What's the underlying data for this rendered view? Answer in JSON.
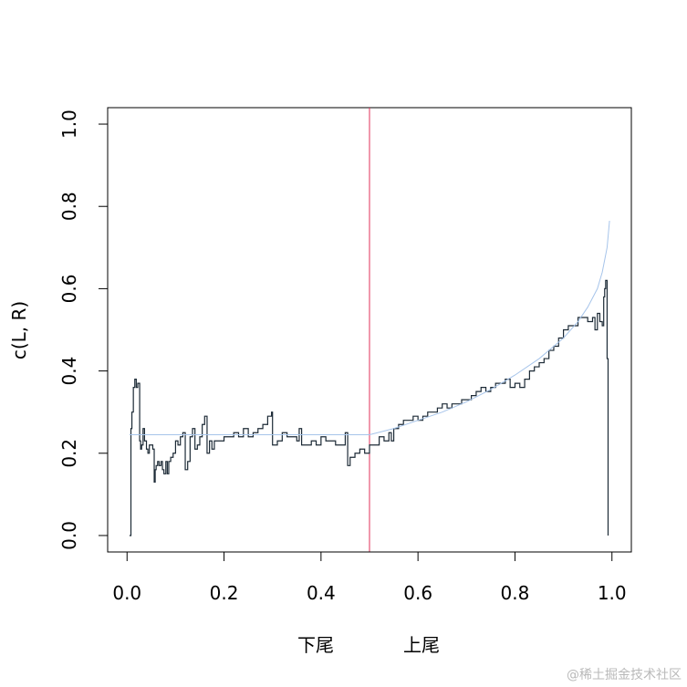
{
  "chart_data": {
    "type": "line",
    "title": "",
    "xlabel_parts": [
      "下尾",
      "上尾"
    ],
    "ylabel": "c(L, R)",
    "xlim": [
      -0.04,
      1.04
    ],
    "ylim": [
      -0.04,
      1.04
    ],
    "x_ticks": [
      0.0,
      0.2,
      0.4,
      0.6,
      0.8,
      1.0
    ],
    "x_tick_labels": [
      "0.0",
      "0.2",
      "0.4",
      "0.6",
      "0.8",
      "1.0"
    ],
    "y_ticks": [
      0.0,
      0.2,
      0.4,
      0.6,
      0.8,
      1.0
    ],
    "y_tick_labels": [
      "0.0",
      "0.2",
      "0.4",
      "0.6",
      "0.8",
      "1.0"
    ],
    "grid": false,
    "legend": "none",
    "vline": {
      "x": 0.5,
      "color": "#e0305a"
    },
    "series": [
      {
        "style": "step",
        "color": "#1c2a36",
        "x": [
          0.005,
          0.008,
          0.01,
          0.013,
          0.016,
          0.019,
          0.022,
          0.026,
          0.028,
          0.03,
          0.033,
          0.036,
          0.04,
          0.043,
          0.046,
          0.05,
          0.053,
          0.056,
          0.058,
          0.06,
          0.063,
          0.066,
          0.07,
          0.073,
          0.076,
          0.08,
          0.083,
          0.086,
          0.09,
          0.095,
          0.1,
          0.105,
          0.11,
          0.115,
          0.12,
          0.125,
          0.13,
          0.135,
          0.14,
          0.145,
          0.15,
          0.155,
          0.16,
          0.165,
          0.17,
          0.175,
          0.18,
          0.19,
          0.2,
          0.21,
          0.22,
          0.23,
          0.24,
          0.25,
          0.26,
          0.27,
          0.28,
          0.29,
          0.298,
          0.3,
          0.31,
          0.32,
          0.33,
          0.34,
          0.35,
          0.355,
          0.36,
          0.37,
          0.38,
          0.39,
          0.4,
          0.41,
          0.42,
          0.43,
          0.44,
          0.45,
          0.455,
          0.46,
          0.47,
          0.48,
          0.49,
          0.5,
          0.51,
          0.52,
          0.53,
          0.54,
          0.545,
          0.55,
          0.56,
          0.57,
          0.58,
          0.59,
          0.6,
          0.61,
          0.62,
          0.63,
          0.64,
          0.65,
          0.66,
          0.67,
          0.68,
          0.69,
          0.7,
          0.71,
          0.72,
          0.73,
          0.74,
          0.75,
          0.76,
          0.77,
          0.78,
          0.79,
          0.8,
          0.81,
          0.82,
          0.83,
          0.84,
          0.85,
          0.86,
          0.87,
          0.88,
          0.89,
          0.9,
          0.91,
          0.92,
          0.93,
          0.94,
          0.95,
          0.96,
          0.965,
          0.97,
          0.975,
          0.98,
          0.983,
          0.985,
          0.987,
          0.99,
          0.992
        ],
        "y": [
          0.0,
          0.26,
          0.3,
          0.36,
          0.38,
          0.36,
          0.37,
          0.23,
          0.21,
          0.22,
          0.26,
          0.23,
          0.21,
          0.2,
          0.22,
          0.22,
          0.21,
          0.13,
          0.16,
          0.17,
          0.18,
          0.17,
          0.18,
          0.16,
          0.15,
          0.18,
          0.15,
          0.18,
          0.19,
          0.2,
          0.23,
          0.22,
          0.24,
          0.25,
          0.16,
          0.18,
          0.24,
          0.26,
          0.21,
          0.22,
          0.24,
          0.27,
          0.29,
          0.2,
          0.23,
          0.21,
          0.23,
          0.23,
          0.24,
          0.24,
          0.25,
          0.24,
          0.26,
          0.24,
          0.25,
          0.26,
          0.27,
          0.29,
          0.3,
          0.22,
          0.23,
          0.25,
          0.24,
          0.24,
          0.23,
          0.26,
          0.22,
          0.22,
          0.23,
          0.22,
          0.24,
          0.23,
          0.23,
          0.22,
          0.22,
          0.25,
          0.17,
          0.19,
          0.2,
          0.21,
          0.2,
          0.22,
          0.22,
          0.24,
          0.23,
          0.25,
          0.23,
          0.26,
          0.27,
          0.28,
          0.28,
          0.29,
          0.28,
          0.29,
          0.3,
          0.3,
          0.31,
          0.32,
          0.31,
          0.32,
          0.32,
          0.33,
          0.33,
          0.34,
          0.35,
          0.36,
          0.35,
          0.36,
          0.37,
          0.37,
          0.38,
          0.36,
          0.37,
          0.36,
          0.38,
          0.4,
          0.41,
          0.42,
          0.43,
          0.45,
          0.46,
          0.48,
          0.5,
          0.51,
          0.51,
          0.53,
          0.53,
          0.52,
          0.53,
          0.5,
          0.54,
          0.52,
          0.51,
          0.58,
          0.6,
          0.62,
          0.43,
          0.0
        ]
      },
      {
        "style": "smooth",
        "color": "#a6c4ea",
        "x": [
          0.005,
          0.05,
          0.1,
          0.15,
          0.2,
          0.25,
          0.3,
          0.35,
          0.4,
          0.45,
          0.5,
          0.55,
          0.6,
          0.65,
          0.7,
          0.75,
          0.8,
          0.85,
          0.9,
          0.93,
          0.95,
          0.97,
          0.98,
          0.99,
          0.995
        ],
        "y": [
          0.245,
          0.245,
          0.245,
          0.245,
          0.245,
          0.245,
          0.245,
          0.245,
          0.245,
          0.245,
          0.245,
          0.26,
          0.28,
          0.3,
          0.325,
          0.355,
          0.39,
          0.43,
          0.48,
          0.52,
          0.555,
          0.6,
          0.64,
          0.7,
          0.765
        ]
      }
    ]
  },
  "watermark": "@稀土掘金技术社区"
}
